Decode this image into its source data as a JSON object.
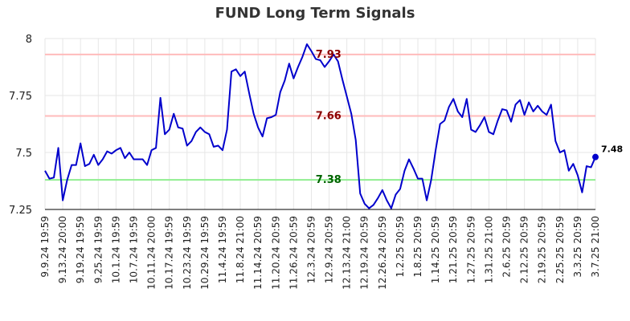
{
  "chart_data": {
    "type": "line",
    "title": "FUND Long Term Signals",
    "xlabel": "",
    "ylabel": "",
    "ylim": [
      7.25,
      8.0
    ],
    "y_ticks": [
      "7.25",
      "7.5",
      "7.75",
      "8"
    ],
    "x_tick_labels": [
      "9.9.24 19:59",
      "9.13.24 20:00",
      "9.19.24 19:59",
      "9.25.24 19:59",
      "10.1.24 19:59",
      "10.7.24 19:59",
      "10.11.24 20:00",
      "10.17.24 19:59",
      "10.23.24 19:59",
      "10.29.24 19:59",
      "11.4.24 19:59",
      "11.8.24 21:00",
      "11.14.24 20:59",
      "11.20.24 20:59",
      "11.26.24 20:59",
      "12.3.24 20:59",
      "12.9.24 20:59",
      "12.13.24 21:00",
      "12.19.24 20:59",
      "12.26.24 20:59",
      "1.2.25 20:59",
      "1.8.25 20:59",
      "1.14.25 20:59",
      "1.21.25 20:59",
      "1.27.25 20:59",
      "1.31.25 21:00",
      "2.6.25 20:59",
      "2.12.25 20:59",
      "2.19.25 20:59",
      "2.25.25 20:59",
      "3.3.25 20:59",
      "3.7.25 21:00"
    ],
    "grid": true,
    "line_color": "#0000cc",
    "series": [
      {
        "values": [
          7.42,
          7.385,
          7.39,
          7.52,
          7.29,
          7.38,
          7.445,
          7.445,
          7.54,
          7.44,
          7.45,
          7.49,
          7.445,
          7.47,
          7.505,
          7.495,
          7.51,
          7.52,
          7.475,
          7.5,
          7.47,
          7.47,
          7.47,
          7.445,
          7.51,
          7.52,
          7.74,
          7.58,
          7.6,
          7.67,
          7.61,
          7.605,
          7.53,
          7.55,
          7.59,
          7.61,
          7.59,
          7.58,
          7.525,
          7.53,
          7.51,
          7.6,
          7.855,
          7.865,
          7.835,
          7.855,
          7.76,
          7.67,
          7.61,
          7.57,
          7.65,
          7.655,
          7.665,
          7.765,
          7.815,
          7.89,
          7.825,
          7.875,
          7.92,
          7.975,
          7.945,
          7.91,
          7.905,
          7.875,
          7.9,
          7.93,
          7.9,
          7.82,
          7.745,
          7.67,
          7.555,
          7.32,
          7.275,
          7.255,
          7.27,
          7.3,
          7.335,
          7.29,
          7.255,
          7.315,
          7.34,
          7.42,
          7.47,
          7.43,
          7.385,
          7.385,
          7.29,
          7.38,
          7.51,
          7.625,
          7.64,
          7.7,
          7.735,
          7.68,
          7.655,
          7.735,
          7.6,
          7.59,
          7.62,
          7.655,
          7.59,
          7.58,
          7.64,
          7.69,
          7.685,
          7.635,
          7.71,
          7.73,
          7.665,
          7.72,
          7.68,
          7.705,
          7.68,
          7.665,
          7.71,
          7.55,
          7.5,
          7.51,
          7.42,
          7.45,
          7.4,
          7.325,
          7.44,
          7.435,
          7.48
        ]
      }
    ],
    "reference_lines": [
      {
        "value": 7.93,
        "label": "7.93",
        "line_color": "#ffbbbb",
        "text_color": "#8b0000"
      },
      {
        "value": 7.66,
        "label": "7.66",
        "line_color": "#ffbbbb",
        "text_color": "#8b0000"
      },
      {
        "value": 7.38,
        "label": "7.38",
        "line_color": "#90ee90",
        "text_color": "#006400"
      }
    ],
    "last_value_label": "7.48",
    "last_point_color": "#0000cc"
  }
}
